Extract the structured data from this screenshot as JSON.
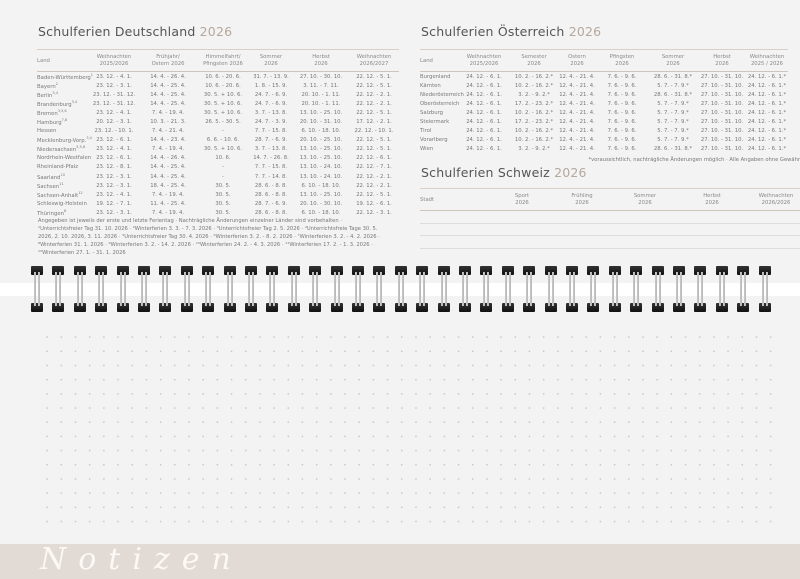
{
  "de": {
    "title": "Schulferien Deutschland",
    "year": "2026",
    "headers": [
      "Land",
      "Weihnachten\n2025/2026",
      "Frühjahr/\nOstern 2026",
      "Himmelfahrt/\nPfingsten 2026",
      "Sommer\n2026",
      "Herbst\n2026",
      "Weihnachten\n2026/2027"
    ],
    "rows": [
      {
        "land": "Baden-Württemberg",
        "sup": "1",
        "v": [
          "23. 12. -  4.  1.",
          "14. 4. - 26. 4.",
          "10. 6. - 20. 6.",
          "31. 7. - 13. 9.",
          "27. 10. - 30. 10.",
          "22. 12. -  5. 1."
        ]
      },
      {
        "land": "Bayern",
        "sup": "2",
        "v": [
          "23. 12. -  3.  1.",
          "14. 4. - 25. 4.",
          "10. 6. - 20. 6.",
          "1. 8. - 15. 9.",
          "3. 11. -  7. 11.",
          "22. 12. -  5. 1."
        ]
      },
      {
        "land": "Berlin",
        "sup": "3,4",
        "v": [
          "23. 12. - 31. 12.",
          "14. 4. - 25. 4.",
          "30. 5. + 10. 6.",
          "24. 7. -  6. 9.",
          "20. 10. -  1. 11.",
          "22. 12. -  2. 1."
        ]
      },
      {
        "land": "Brandenburg",
        "sup": "3,4",
        "v": [
          "23. 12. - 31. 12.",
          "14. 4. - 25. 4.",
          "30. 5. + 10. 6.",
          "24. 7. -  6. 9.",
          "20. 10. -  1. 11.",
          "22. 12. -  2. 1."
        ]
      },
      {
        "land": "Bremen",
        "sup": "3,5,6",
        "v": [
          "23. 12. -  4.  1.",
          "7. 4. - 19. 4.",
          "30. 5. + 10. 6.",
          "3. 7. - 13. 8.",
          "13. 10. - 25. 10.",
          "22. 12. -  5. 1."
        ]
      },
      {
        "land": "Hamburg",
        "sup": "7,8",
        "v": [
          "20. 12. -  3.  1.",
          "10. 3. - 21. 3.",
          "26. 5. - 30. 5.",
          "24. 7. -  3. 9.",
          "20. 10. - 31. 10.",
          "17. 12. -  2. 1."
        ]
      },
      {
        "land": "Hessen",
        "sup": "",
        "v": [
          "23. 12. - 10.  1.",
          "7. 4. - 21. 4.",
          "-",
          "7. 7. - 15. 8.",
          "6. 10. - 18. 10.",
          "22. 12. - 10. 1."
        ]
      },
      {
        "land": "Mecklenburg-Vorp.",
        "sup": "3,4",
        "v": [
          "23. 12. -  6.  1.",
          "14. 4. - 23. 4.",
          "6. 6. - 10. 6.",
          "28. 7. -  6. 9.",
          "20. 10. - 25. 10.",
          "22. 12. -  5. 1."
        ]
      },
      {
        "land": "Niedersachsen",
        "sup": "3,5,6",
        "v": [
          "23. 12. -  4.  1.",
          "7. 4. - 19. 4.",
          "30. 5. + 10. 6.",
          "3. 7. - 13. 8.",
          "13. 10. - 25. 10.",
          "22. 12. -  5. 1."
        ]
      },
      {
        "land": "Nordrhein-Westfalen",
        "sup": "",
        "v": [
          "23. 12. -  6.  1.",
          "14. 4. - 26. 4.",
          "10. 6.",
          "14. 7. - 26. 8.",
          "13. 10. - 25. 10.",
          "22. 12. -  6. 1."
        ]
      },
      {
        "land": "Rheinland-Pfalz",
        "sup": "",
        "v": [
          "23. 12. -  8.  1.",
          "14. 4. - 25. 4.",
          "-",
          "7. 7. - 15. 8.",
          "13. 10. - 24. 10.",
          "22. 12. -  7. 1."
        ]
      },
      {
        "land": "Saarland",
        "sup": "10",
        "v": [
          "23. 12. -  3.  1.",
          "14. 4. - 25. 4.",
          "-",
          "7. 7. - 14. 8.",
          "13. 10. - 24. 10.",
          "22. 12. -  2. 1."
        ]
      },
      {
        "land": "Sachsen",
        "sup": "11",
        "v": [
          "23. 12. -  3.  1.",
          "18. 4. - 25. 4.",
          "30. 5.",
          "28. 6. -  8. 8.",
          "6. 10. - 18. 10.",
          "22. 12. -  2. 1."
        ]
      },
      {
        "land": "Sachsen-Anhalt",
        "sup": "12",
        "v": [
          "23. 12. -  4.  1.",
          "7. 4. - 19. 4.",
          "30. 5.",
          "28. 6. -  8. 8.",
          "13. 10. - 25. 10.",
          "22. 12. -  5. 1."
        ]
      },
      {
        "land": "Schleswig-Holstein",
        "sup": "",
        "v": [
          "19. 12. -  7.  1.",
          "11. 4. - 25. 4.",
          "30. 5.",
          "28. 7. -  6. 9.",
          "20. 10. - 30. 10.",
          "19. 12. -  6. 1."
        ]
      },
      {
        "land": "Thüringen",
        "sup": "8",
        "v": [
          "23. 12. -  3.  1.",
          "7. 4. - 19. 4.",
          "30. 5.",
          "28. 6. -  8. 8.",
          "6. 10. - 18. 10.",
          "22. 12. -  3. 1."
        ]
      }
    ],
    "footnote": "Angegeben ist jeweils der erste und letzte Ferientag  ·  Nachträgliche Änderungen einzelner Länder sind vorbehalten · ¹Unterrichtsfreier Tag 31. 10. 2026 · ²Winterferien 3. 3. - 7. 3. 2026 · ³Unterrichtsfreier Tag 2. 5. 2026 · ⁴Unterrichtsfreie Tage 30. 5. 2026, 2. 10. 2026, 3. 11. 2026 · ⁵Unterrichtsfreier Tag 30. 4. 2026 · ⁶Winterferien 3. 2. - 8. 2. 2026 · ⁷Winterferien 3. 2. - 4. 2. 2026 · ⁸Winterferien 31. 1. 2026 · ⁹Winterferien 3. 2. - 14. 2. 2026 · ¹⁰Winterferien 24. 2. - 4. 3. 2026 · ¹¹Winterferien 17. 2. - 1. 3. 2026 · ¹²Winterferien 27. 1. - 31. 1. 2026"
  },
  "at": {
    "title": "Schulferien Österreich",
    "year": "2026",
    "headers": [
      "Land",
      "Weihnachten\n2025/2026",
      "Semester\n2026",
      "Ostern\n2026",
      "Pfingsten\n2026",
      "Sommer\n2026",
      "Herbst\n2026",
      "Weihnachten\n2025 / 2026"
    ],
    "rows": [
      {
        "land": "Burgenland",
        "v": [
          "24. 12. - 6. 1.",
          "10. 2. - 16. 2.*",
          "12. 4. - 21. 4.",
          "7. 6. - 9. 6.",
          "28. 6. - 31. 8.*",
          "27. 10. - 31. 10.",
          "24. 12. - 6. 1.*"
        ]
      },
      {
        "land": "Kärnten",
        "v": [
          "24. 12. - 6. 1.",
          "10. 2. - 16. 2.*",
          "12. 4. - 21. 4.",
          "7. 6. - 9. 6.",
          "5. 7. -  7. 9.*",
          "27. 10. - 31. 10.",
          "24. 12. - 6. 1.*"
        ]
      },
      {
        "land": "Niederösterreich",
        "v": [
          "24. 12. - 6. 1.",
          "3. 2. -  9. 2.*",
          "12. 4. - 21. 4.",
          "7. 6. - 9. 6.",
          "28. 6. - 31. 8.*",
          "27. 10. - 31. 10.",
          "24. 12. - 6. 1.*"
        ]
      },
      {
        "land": "Oberösterreich",
        "v": [
          "24. 12. - 6. 1.",
          "17. 2. - 23. 2.*",
          "12. 4. - 21. 4.",
          "7. 6. - 9. 6.",
          "5. 7. -  7. 9.*",
          "27. 10. - 31. 10.",
          "24. 12. - 6. 1.*"
        ]
      },
      {
        "land": "Salzburg",
        "v": [
          "24. 12. - 6. 1.",
          "10. 2. - 16. 2.*",
          "12. 4. - 21. 4.",
          "7. 6. - 9. 6.",
          "5. 7. -  7. 9.*",
          "27. 10. - 31. 10.",
          "24. 12. - 6. 1.*"
        ]
      },
      {
        "land": "Steiermark",
        "v": [
          "24. 12. - 6. 1.",
          "17. 2. - 23. 2.*",
          "12. 4. - 21. 4.",
          "7. 6. - 9. 6.",
          "5. 7. -  7. 9.*",
          "27. 10. - 31. 10.",
          "24. 12. - 6. 1.*"
        ]
      },
      {
        "land": "Tirol",
        "v": [
          "24. 12. - 6. 1.",
          "10. 2. - 16. 2.*",
          "12. 4. - 21. 4.",
          "7. 6. - 9. 6.",
          "5. 7. -  7. 9.*",
          "27. 10. - 31. 10.",
          "24. 12. - 6. 1.*"
        ]
      },
      {
        "land": "Vorarlberg",
        "v": [
          "24. 12. - 6. 1.",
          "10. 2. - 16. 2.*",
          "12. 4. - 21. 4.",
          "7. 6. - 9. 6.",
          "5. 7. -  7. 9.*",
          "27. 10. - 31. 10.",
          "24. 12. - 6. 1.*"
        ]
      },
      {
        "land": "Wien",
        "v": [
          "24. 12. - 6. 1.",
          "3. 2. -  9. 2.*",
          "12. 4. - 21. 4.",
          "7. 6. - 9. 6.",
          "28. 6. - 31. 8.*",
          "27. 10. - 31. 10.",
          "24. 12. - 6. 1.*"
        ]
      }
    ],
    "footnote": "*voraussichtlich, nachträgliche Änderungen möglich · Alle Angaben ohne Gewähr"
  },
  "ch": {
    "title": "Schulferien Schweiz",
    "year": "2026",
    "headers": [
      "Stadt",
      "Sport\n2026",
      "Frühling\n2026",
      "Sommer\n2026",
      "Herbst\n2026",
      "Weihnachten\n2026/2026"
    ]
  },
  "notes_label": "Notizen",
  "colors": {
    "accent": "#b5a89c",
    "notes_band": "#e2dbd5",
    "background": "#f3f3f3"
  }
}
